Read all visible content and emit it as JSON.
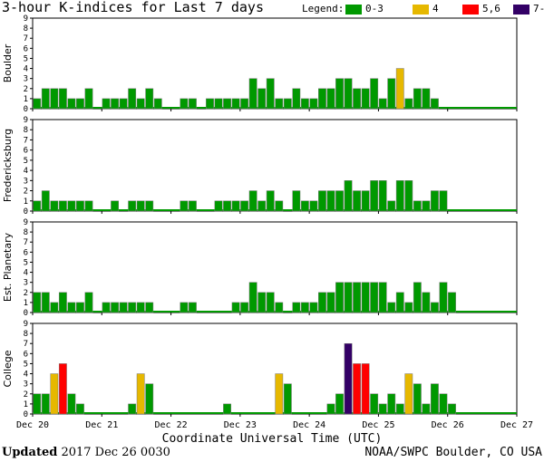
{
  "title": "3-hour K-indices for Last 7 days",
  "legend": {
    "label": "Legend:",
    "items": [
      {
        "label": "0-3",
        "color": "#009900"
      },
      {
        "label": "4",
        "color": "#E6B800"
      },
      {
        "label": "5,6",
        "color": "#FF0000"
      },
      {
        "label": "7-9",
        "color": "#330066"
      }
    ]
  },
  "footer": {
    "updated_label": "Updated",
    "updated_value": "2017 Dec 26 0030",
    "source": "NOAA/SWPC Boulder, CO USA"
  },
  "chart_data": [
    {
      "type": "bar",
      "ylabel": "Boulder",
      "ylim": [
        0,
        9
      ],
      "yticks": [
        "0",
        "1",
        "2",
        "3",
        "4",
        "5",
        "6",
        "7",
        "8",
        "9"
      ],
      "xlabel": "Coordinate Universal Time (UTC)",
      "xtick_labels": [
        "Dec 20",
        "Dec 21",
        "Dec 22",
        "Dec 23",
        "Dec 24",
        "Dec 25",
        "Dec 26",
        "Dec 27"
      ],
      "values": [
        1,
        2,
        2,
        2,
        1,
        1,
        2,
        0,
        1,
        1,
        1,
        2,
        1,
        2,
        1,
        0,
        0,
        1,
        1,
        0,
        1,
        1,
        1,
        1,
        1,
        3,
        2,
        3,
        1,
        1,
        2,
        1,
        1,
        2,
        2,
        3,
        3,
        2,
        2,
        3,
        1,
        3,
        4,
        1,
        2,
        2,
        1,
        0
      ]
    },
    {
      "type": "bar",
      "ylabel": "Fredericksburg",
      "ylim": [
        0,
        9
      ],
      "yticks": [
        "0",
        "1",
        "2",
        "3",
        "4",
        "5",
        "6",
        "7",
        "8",
        "9"
      ],
      "values": [
        1,
        2,
        1,
        1,
        1,
        1,
        1,
        0,
        0,
        1,
        0,
        1,
        1,
        1,
        0,
        0,
        0,
        1,
        1,
        0,
        0,
        1,
        1,
        1,
        1,
        2,
        1,
        2,
        1,
        0,
        2,
        1,
        1,
        2,
        2,
        2,
        3,
        2,
        2,
        3,
        3,
        1,
        3,
        3,
        1,
        1,
        2,
        2
      ]
    },
    {
      "type": "bar",
      "ylabel": "Est. Planetary",
      "ylim": [
        0,
        9
      ],
      "yticks": [
        "0",
        "1",
        "2",
        "3",
        "4",
        "5",
        "6",
        "7",
        "8",
        "9"
      ],
      "values": [
        2,
        2,
        1,
        2,
        1,
        1,
        2,
        0,
        1,
        1,
        1,
        1,
        1,
        1,
        0,
        0,
        0,
        1,
        1,
        0,
        0,
        0,
        0,
        1,
        1,
        3,
        2,
        2,
        1,
        0,
        1,
        1,
        1,
        2,
        2,
        3,
        3,
        3,
        3,
        3,
        3,
        1,
        2,
        1,
        3,
        2,
        1,
        3,
        2
      ]
    },
    {
      "type": "bar",
      "ylabel": "College",
      "ylim": [
        0,
        9
      ],
      "yticks": [
        "0",
        "1",
        "2",
        "3",
        "4",
        "5",
        "6",
        "7",
        "8",
        "9"
      ],
      "values": [
        2,
        2,
        4,
        5,
        2,
        1,
        0,
        0,
        0,
        0,
        0,
        1,
        4,
        3,
        0,
        0,
        0,
        0,
        0,
        0,
        0,
        0,
        1,
        0,
        0,
        0,
        0,
        0,
        4,
        3,
        0,
        0,
        0,
        0,
        1,
        2,
        7,
        5,
        5,
        2,
        1,
        2,
        1,
        4,
        3,
        1,
        3,
        2,
        1
      ]
    }
  ]
}
